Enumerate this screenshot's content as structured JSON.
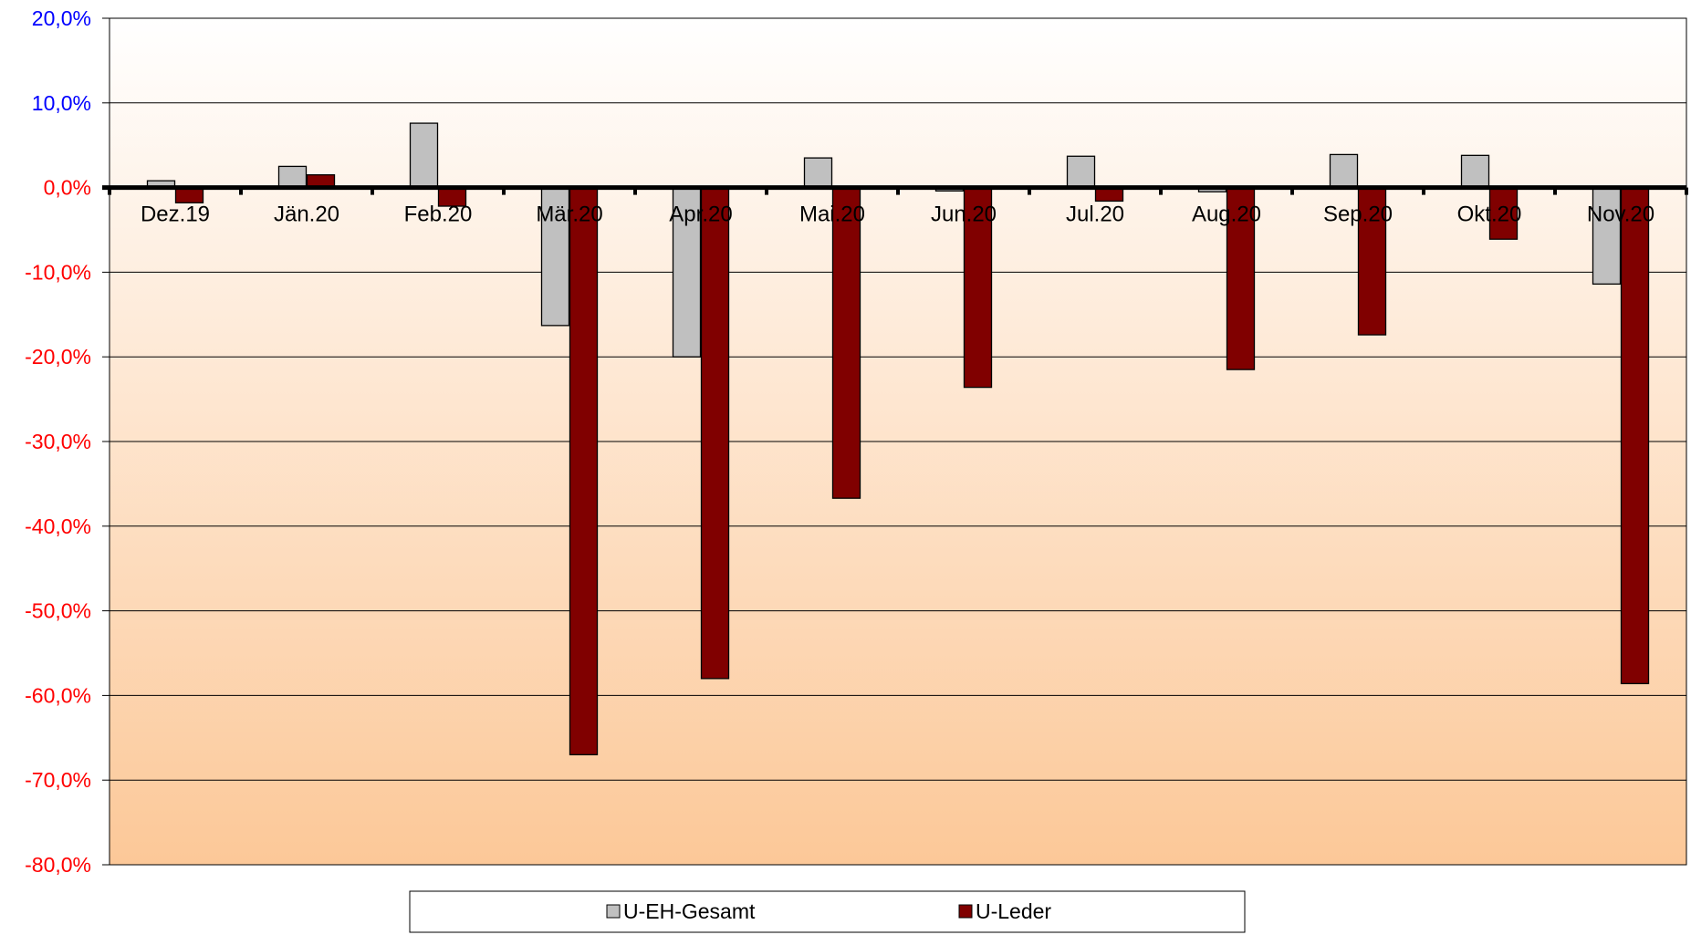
{
  "chart_data": {
    "type": "bar",
    "categories": [
      "Dez.19",
      "Jän.20",
      "Feb.20",
      "Mär.20",
      "Apr.20",
      "Mai.20",
      "Jun.20",
      "Jul.20",
      "Aug.20",
      "Sep.20",
      "Okt.20",
      "Nov.20"
    ],
    "series": [
      {
        "name": "U-EH-Gesamt",
        "values": [
          0.8,
          2.5,
          7.6,
          -16.3,
          -20.0,
          3.5,
          -0.4,
          3.7,
          -0.5,
          3.9,
          3.8,
          -11.4
        ]
      },
      {
        "name": "U-Leder",
        "values": [
          -1.8,
          1.5,
          -2.2,
          -67.0,
          -58.0,
          -36.7,
          -23.6,
          -1.6,
          -21.5,
          -17.4,
          -6.1,
          -58.6
        ]
      }
    ],
    "yticks": [
      "20,0%",
      "10,0%",
      "0,0%",
      "-10,0%",
      "-20,0%",
      "-30,0%",
      "-40,0%",
      "-50,0%",
      "-60,0%",
      "-70,0%",
      "-80,0%"
    ],
    "ylim": [
      -80,
      20
    ],
    "grid": true,
    "legend_position": "bottom",
    "colors": {
      "U-EH-Gesamt": "#c0c0c0",
      "U-Leder": "#800000",
      "tick_positive": "#0000ff",
      "tick_negative": "#ff0000",
      "plot_gradient_top": "#ffffff",
      "plot_gradient_bottom": "#fcc898"
    }
  }
}
